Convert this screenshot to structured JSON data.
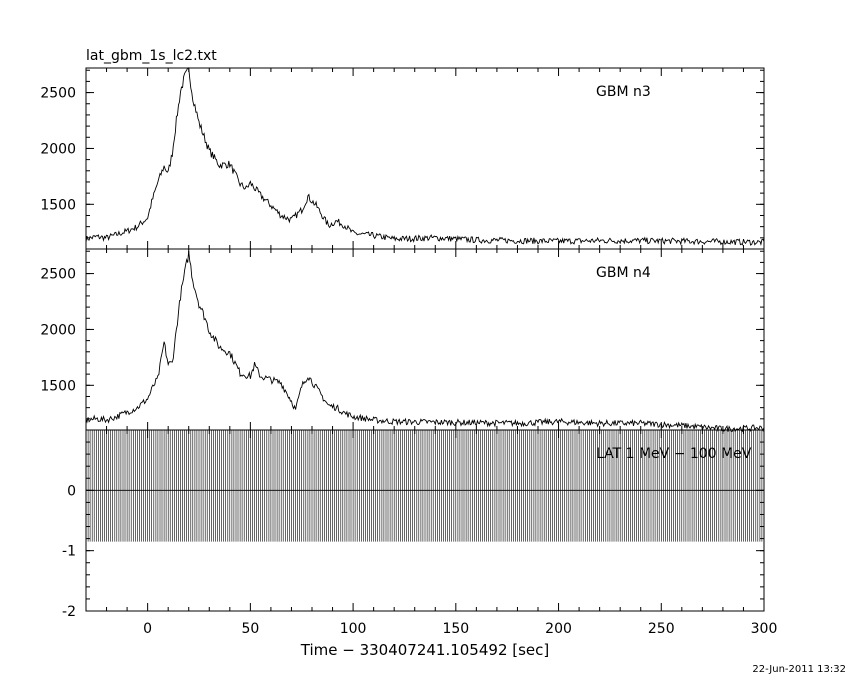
{
  "file_title": "lat_gbm_1s_lc2.txt",
  "timestamp": "22-Jun-2011 13:32",
  "chart_data": {
    "type": "line",
    "xlabel": "Time − 330407241.105492 [sec]",
    "xlim": [
      -30,
      300
    ],
    "xticks": [
      0,
      50,
      100,
      150,
      200,
      250,
      300
    ],
    "panels": [
      {
        "name": "GBM n3",
        "ylim": [
          1100,
          2720
        ],
        "yticks": [
          1500,
          2000,
          2500
        ],
        "series": {
          "x": [
            -30,
            -25,
            -20,
            -15,
            -10,
            -5,
            0,
            2,
            5,
            8,
            10,
            12,
            14,
            16,
            18,
            20,
            22,
            25,
            28,
            30,
            35,
            40,
            45,
            48,
            50,
            55,
            60,
            65,
            70,
            75,
            78,
            82,
            88,
            92,
            96,
            100,
            110,
            120,
            140,
            160,
            180,
            200,
            220,
            240,
            260,
            280,
            300
          ],
          "y": [
            1190,
            1210,
            1200,
            1230,
            1260,
            1300,
            1380,
            1520,
            1700,
            1840,
            1780,
            1960,
            2250,
            2510,
            2640,
            2700,
            2460,
            2230,
            2080,
            1980,
            1850,
            1860,
            1680,
            1640,
            1690,
            1580,
            1490,
            1400,
            1360,
            1450,
            1570,
            1490,
            1310,
            1350,
            1310,
            1240,
            1220,
            1190,
            1200,
            1180,
            1175,
            1170,
            1175,
            1175,
            1170,
            1165,
            1160
          ]
        }
      },
      {
        "name": "GBM n4",
        "ylim": [
          1100,
          2720
        ],
        "yticks": [
          1500,
          2000,
          2500
        ],
        "series": {
          "x": [
            -30,
            -25,
            -20,
            -15,
            -10,
            -5,
            0,
            3,
            5,
            8,
            10,
            12,
            14,
            16,
            18,
            20,
            22,
            25,
            28,
            30,
            35,
            40,
            45,
            50,
            52,
            55,
            60,
            65,
            70,
            72,
            75,
            78,
            82,
            88,
            92,
            96,
            100,
            110,
            120,
            140,
            160,
            180,
            200,
            220,
            240,
            260,
            280,
            300
          ],
          "y": [
            1190,
            1200,
            1190,
            1220,
            1260,
            1300,
            1380,
            1500,
            1560,
            1880,
            1690,
            1700,
            2000,
            2300,
            2500,
            2680,
            2440,
            2230,
            2100,
            1990,
            1840,
            1790,
            1610,
            1580,
            1680,
            1580,
            1550,
            1520,
            1360,
            1280,
            1490,
            1590,
            1480,
            1320,
            1300,
            1250,
            1220,
            1190,
            1175,
            1170,
            1165,
            1160,
            1175,
            1160,
            1160,
            1140,
            1110,
            1120
          ]
        }
      },
      {
        "name": "LAT 1 MeV − 100 MeV",
        "ylim": [
          -2,
          1
        ],
        "yticks": [
          -2,
          -1,
          0
        ],
        "series": {
          "x": [
            -30,
            300
          ],
          "y": [
            0,
            0
          ]
        },
        "error_band": [
          -0.85,
          1
        ]
      }
    ]
  }
}
